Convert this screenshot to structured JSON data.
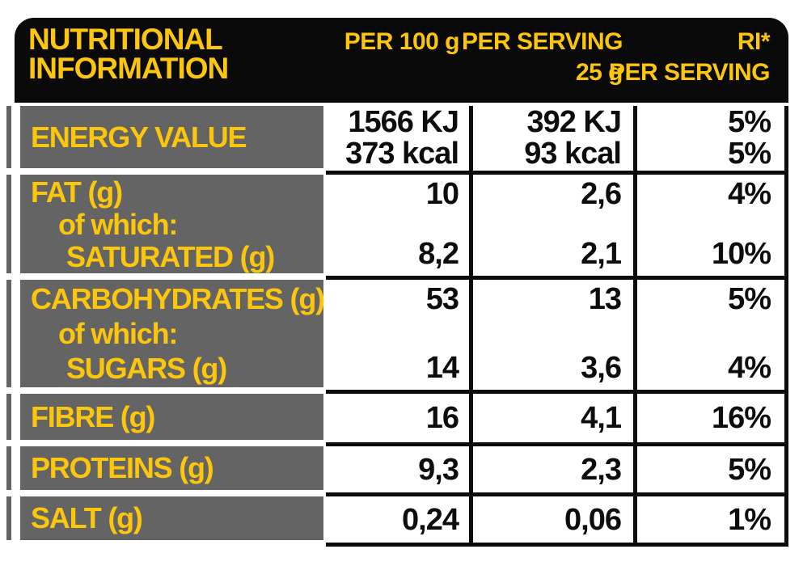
{
  "colors": {
    "accent_yellow": "#fcc60d",
    "label_gray": "#646464",
    "header_black": "#0a0a0a",
    "border_black": "#0b0b0b",
    "value_text": "#0d0d0d"
  },
  "header": {
    "title_line1": "NUTRITIONAL",
    "title_line2": "INFORMATION",
    "col_per100": "PER 100 g",
    "col_serving_line1": "PER SERVING",
    "col_serving_line2": "25 g",
    "col_ri_line1": "RI*",
    "col_ri_line2": "PER SERVING"
  },
  "rows": [
    {
      "label": [
        "ENERGY VALUE"
      ],
      "per100": [
        "1566 KJ",
        "373 kcal"
      ],
      "serving": [
        "392 KJ",
        "93 kcal"
      ],
      "ri": [
        "5%",
        "5%"
      ]
    },
    {
      "label": [
        "FAT (g)",
        "of which:",
        "SATURATED (g)"
      ],
      "per100": [
        "10",
        "8,2"
      ],
      "serving": [
        "2,6",
        "2,1"
      ],
      "ri": [
        "4%",
        "10%"
      ]
    },
    {
      "label": [
        "CARBOHYDRATES (g)",
        "of which:",
        "SUGARS (g)"
      ],
      "per100": [
        "53",
        "14"
      ],
      "serving": [
        "13",
        "3,6"
      ],
      "ri": [
        "5%",
        "4%"
      ]
    },
    {
      "label": [
        "FIBRE (g)"
      ],
      "per100": [
        "16"
      ],
      "serving": [
        "4,1"
      ],
      "ri": [
        "16%"
      ]
    },
    {
      "label": [
        "PROTEINS (g)"
      ],
      "per100": [
        "9,3"
      ],
      "serving": [
        "2,3"
      ],
      "ri": [
        "5%"
      ]
    },
    {
      "label": [
        "SALT (g)"
      ],
      "per100": [
        "0,24"
      ],
      "serving": [
        "0,06"
      ],
      "ri": [
        "1%"
      ]
    }
  ]
}
